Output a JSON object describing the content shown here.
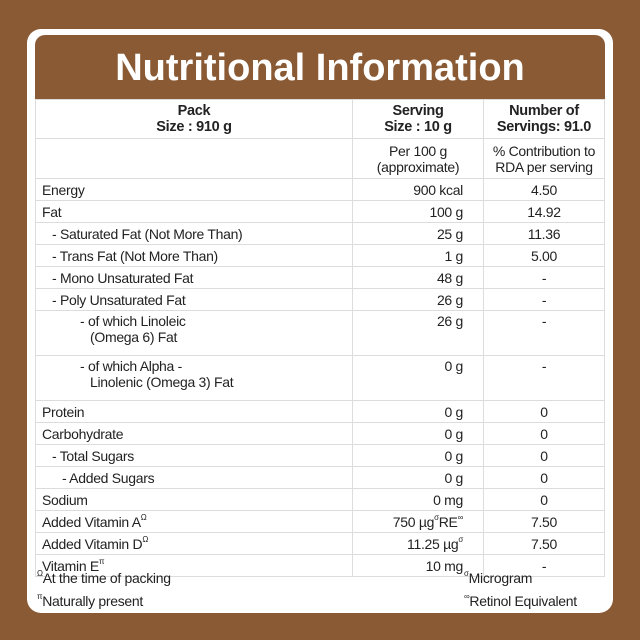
{
  "title": "Nutritional Information",
  "header": {
    "pack": [
      "Pack",
      "Size : 910 g"
    ],
    "serving": [
      "Serving",
      "Size : 10 g"
    ],
    "servings": [
      "Number of",
      "Servings:  91.0"
    ],
    "per100": [
      "Per 100 g",
      "(approximate)"
    ],
    "rda": [
      "% Contribution to",
      "RDA per serving"
    ]
  },
  "rows": [
    {
      "name": "Energy",
      "value": "900 kcal",
      "rda": "4.50"
    },
    {
      "name": "Fat",
      "value": "100 g",
      "rda": "14.92"
    },
    {
      "name": "  - Saturated Fat (Not More Than)",
      "value": "25 g",
      "rda": "11.36"
    },
    {
      "name": "  - Trans Fat (Not More Than)",
      "value": "1 g",
      "rda": "5.00"
    },
    {
      "name": "  - Mono Unsaturated Fat",
      "value": "48 g",
      "rda": "-"
    },
    {
      "name": "  - Poly Unsaturated Fat",
      "value": "26 g",
      "rda": "-"
    },
    {
      "name": "- of which Linoleic",
      "name2": "(Omega 6) Fat",
      "value": "26 g",
      "rda": "-"
    },
    {
      "name": "- of which Alpha -",
      "name2": "Linolenic (Omega 3) Fat",
      "value": "0 g",
      "rda": "-"
    },
    {
      "name": "Protein",
      "value": "0 g",
      "rda": "0"
    },
    {
      "name": "Carbohydrate",
      "value": "0 g",
      "rda": "0"
    },
    {
      "name": "  - Total Sugars",
      "value": "0 g",
      "rda": "0"
    },
    {
      "name": "    - Added Sugars",
      "value": "0 g",
      "rda": "0"
    },
    {
      "name": "Sodium",
      "value": "0 mg",
      "rda": "0"
    },
    {
      "name": "Added Vitamin A",
      "sup": "Ω",
      "value": "750 µg",
      "vsup": "σ",
      "value2": " RE",
      "vsup2": "∞",
      "rda": "7.50"
    },
    {
      "name": "Added Vitamin D",
      "sup": "Ω",
      "value": "11.25 µg",
      "vsup": "σ",
      "rda": "7.50"
    },
    {
      "name": "Vitamin E",
      "sup": "π",
      "value": "10 mg",
      "rda": "-"
    }
  ],
  "footnotes": {
    "packing": {
      "mark": "Ω",
      "text": "At the time of packing"
    },
    "natural": {
      "mark": "π",
      "text": "Naturally present"
    },
    "microgram": {
      "mark": "σ",
      "text": "Microgram"
    },
    "retinol": {
      "mark": "∞",
      "text": "Retinol Equivalent"
    }
  }
}
